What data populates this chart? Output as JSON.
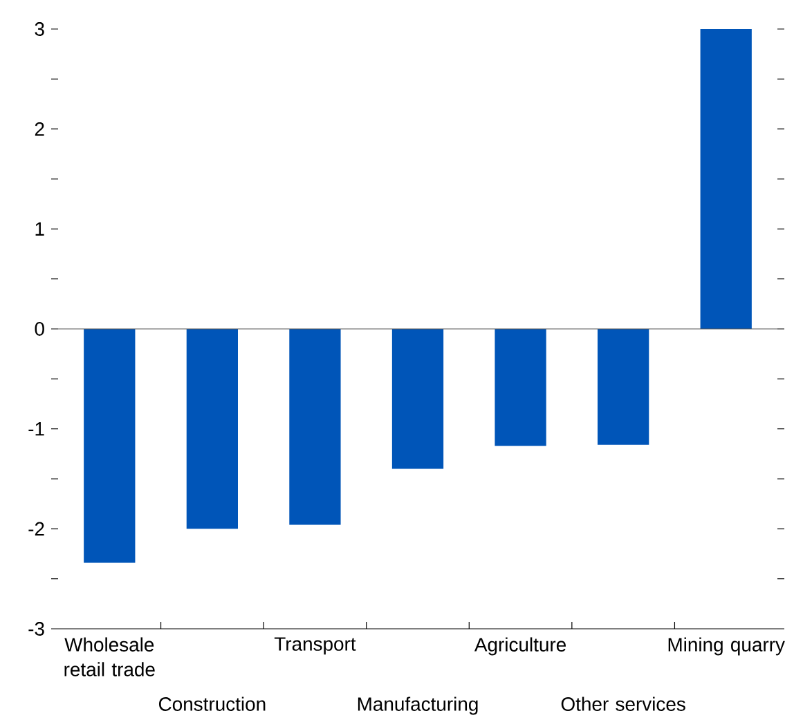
{
  "chart_data": {
    "type": "bar",
    "categories": [
      "Wholesale retail trade",
      "Construction",
      "Transport",
      "Manufacturing",
      "Agriculture",
      "Other services",
      "Mining quarry"
    ],
    "values": [
      -2.34,
      -2.0,
      -1.96,
      -1.4,
      -1.17,
      -1.16,
      3.0
    ],
    "color": "#0055b8",
    "ylim": [
      -3,
      3
    ],
    "yticks": [
      -3,
      {
        "value": -2.5,
        "label": null
      },
      -2,
      {
        "value": -1.5,
        "label": null
      },
      -1,
      {
        "value": -0.5,
        "label": null
      },
      0,
      {
        "value": 0.5,
        "label": null
      },
      1,
      {
        "value": 1.5,
        "label": null
      },
      2,
      {
        "value": 2.5,
        "label": null
      },
      3
    ],
    "ref_lines": [
      {
        "axis": "y",
        "value": 0,
        "color": "#555555"
      }
    ],
    "grid": false
  }
}
